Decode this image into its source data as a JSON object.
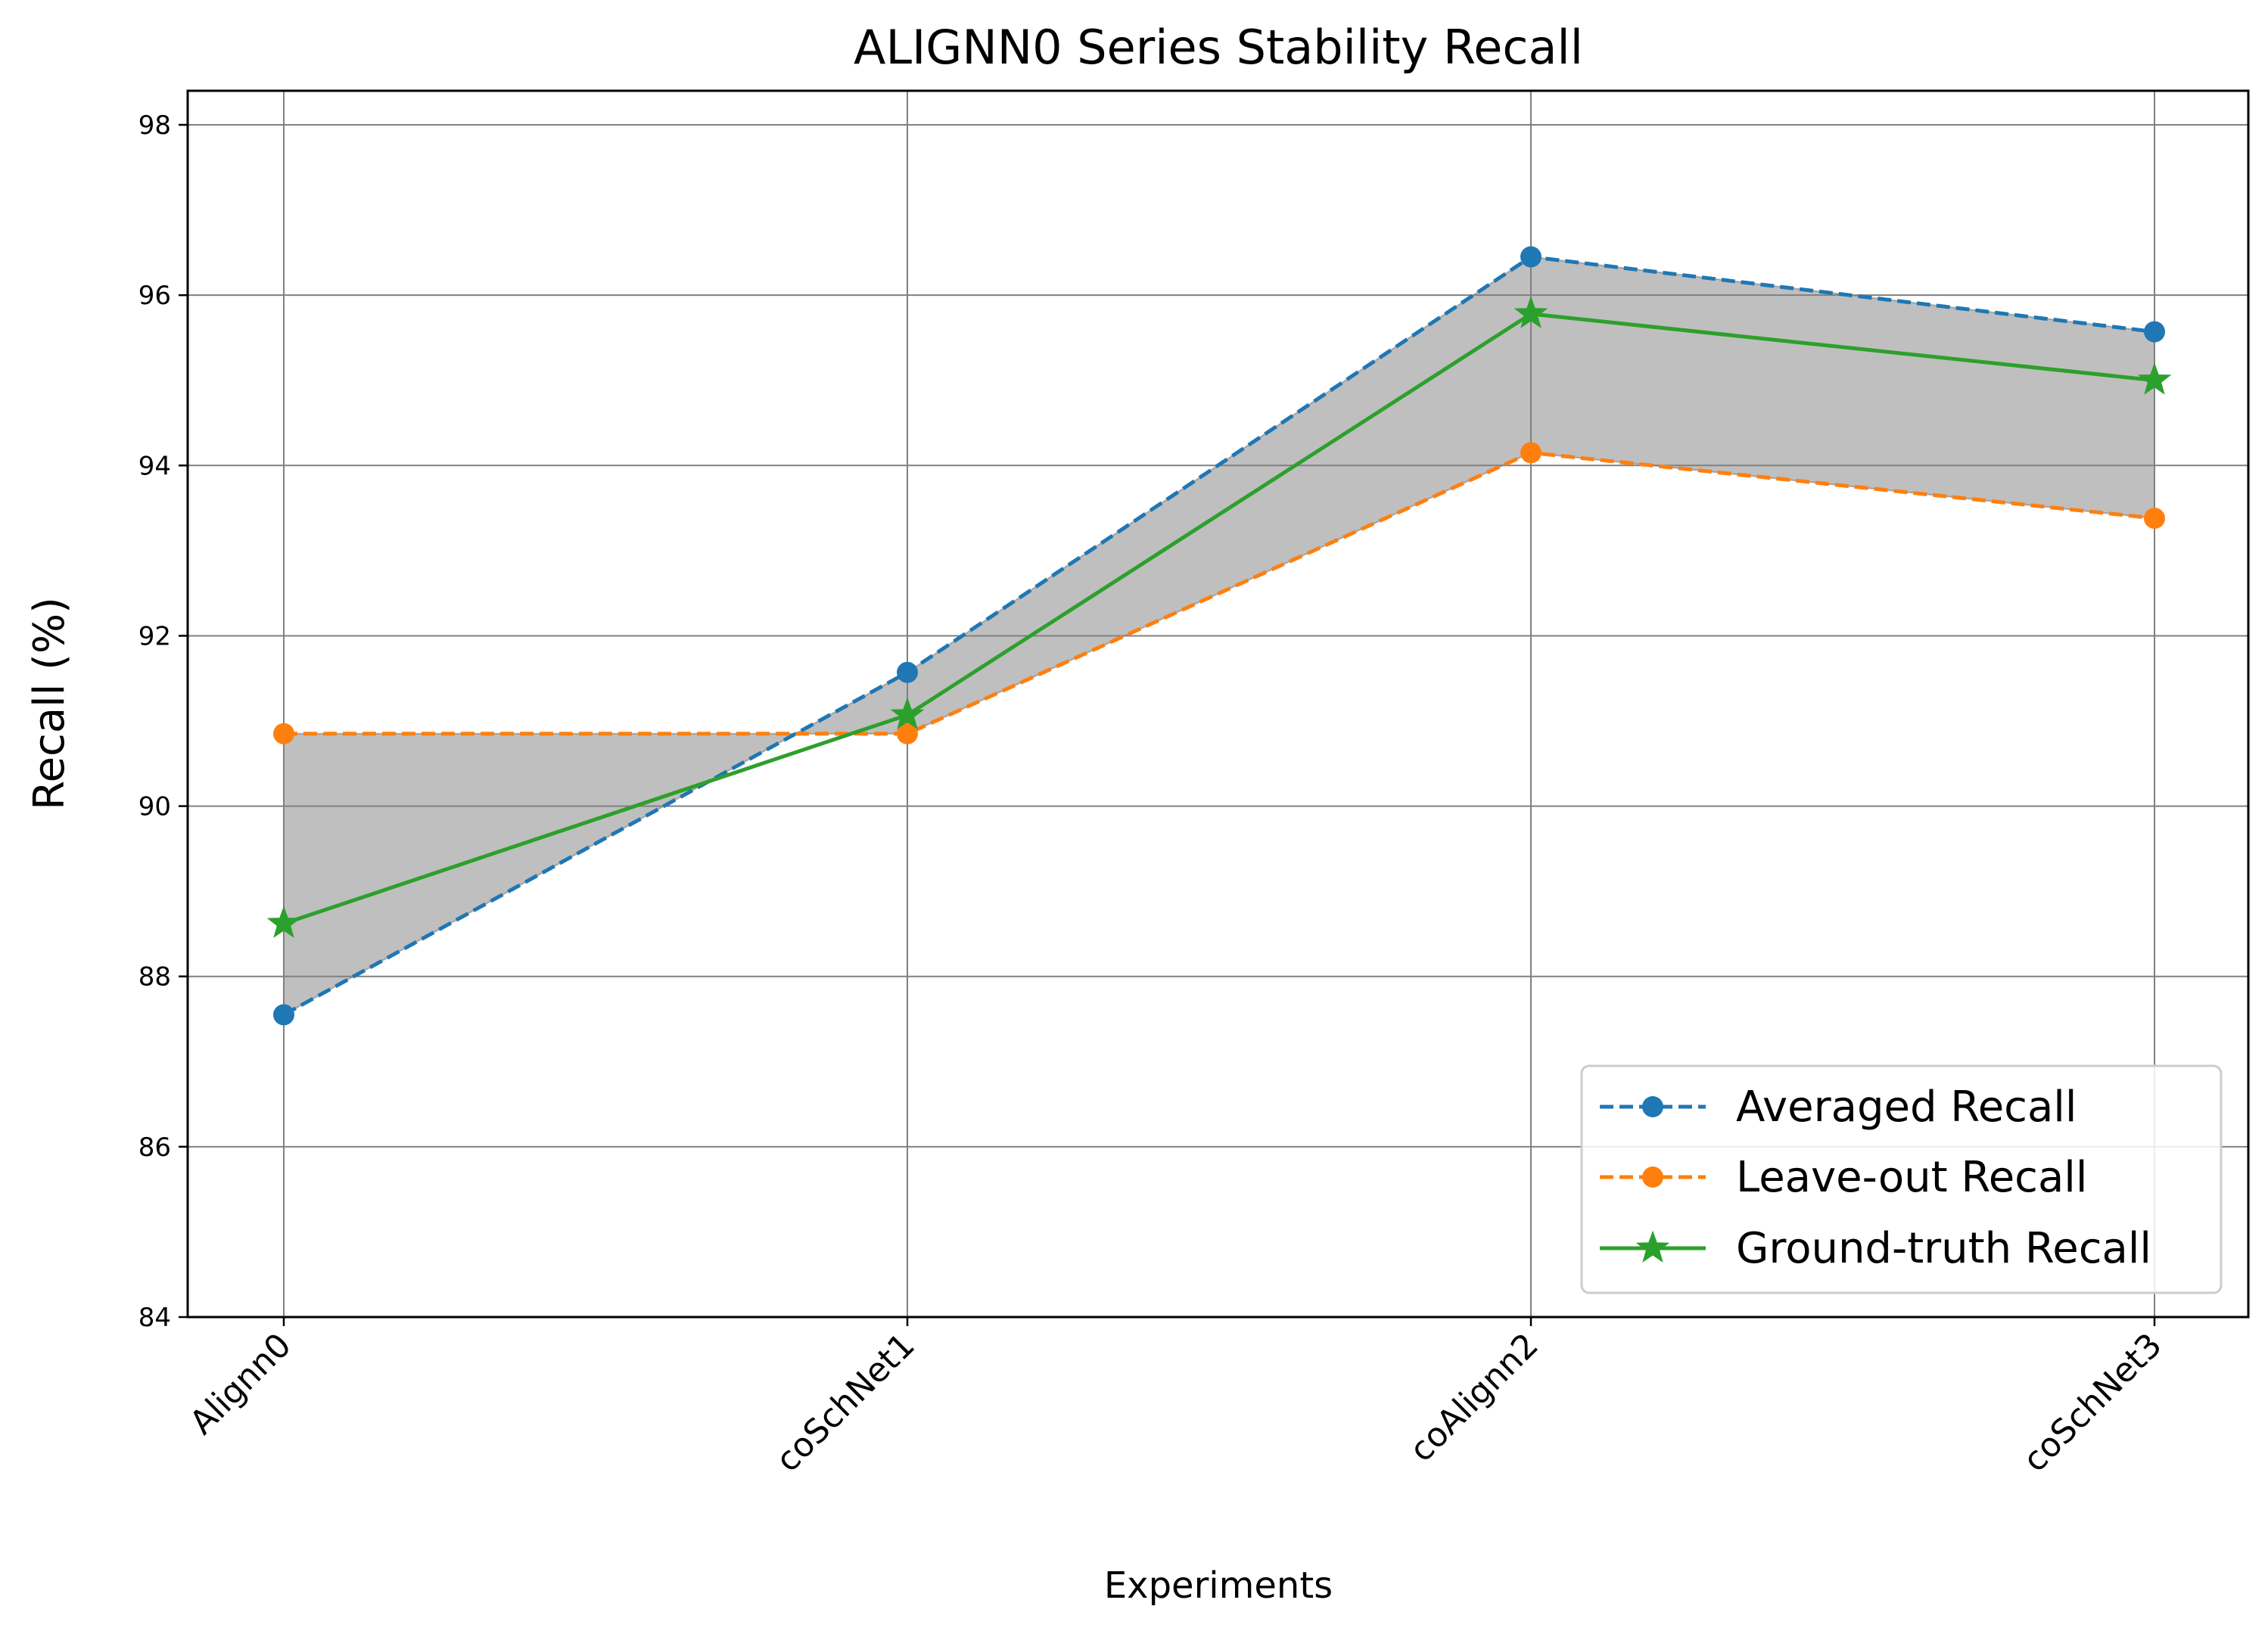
{
  "chart_data": {
    "type": "line",
    "title": "ALIGNN0 Series Stability Recall",
    "xlabel": "Experiments",
    "ylabel": "Recall (%)",
    "categories": [
      "Alignn0",
      "coSchNet1",
      "coAlignn2",
      "coSchNet3"
    ],
    "ylim": [
      84,
      98.4
    ],
    "yticks": [
      84,
      86,
      88,
      90,
      92,
      94,
      96,
      98
    ],
    "grid": true,
    "legend_position": "lower-right",
    "fill_between": {
      "series": [
        "Averaged Recall",
        "Leave-out Recall"
      ],
      "color": "#808080"
    },
    "series": [
      {
        "name": "Averaged Recall",
        "values": [
          87.55,
          91.57,
          96.45,
          95.57
        ],
        "color": "#1f77b4",
        "linestyle": "dashed",
        "marker": "circle"
      },
      {
        "name": "Leave-out Recall",
        "values": [
          90.85,
          90.85,
          94.15,
          93.38
        ],
        "color": "#ff7f0e",
        "linestyle": "dashed",
        "marker": "circle"
      },
      {
        "name": "Ground-truth Recall",
        "values": [
          88.62,
          91.07,
          95.78,
          95.0
        ],
        "color": "#2ca02c",
        "linestyle": "solid",
        "marker": "star"
      }
    ]
  }
}
